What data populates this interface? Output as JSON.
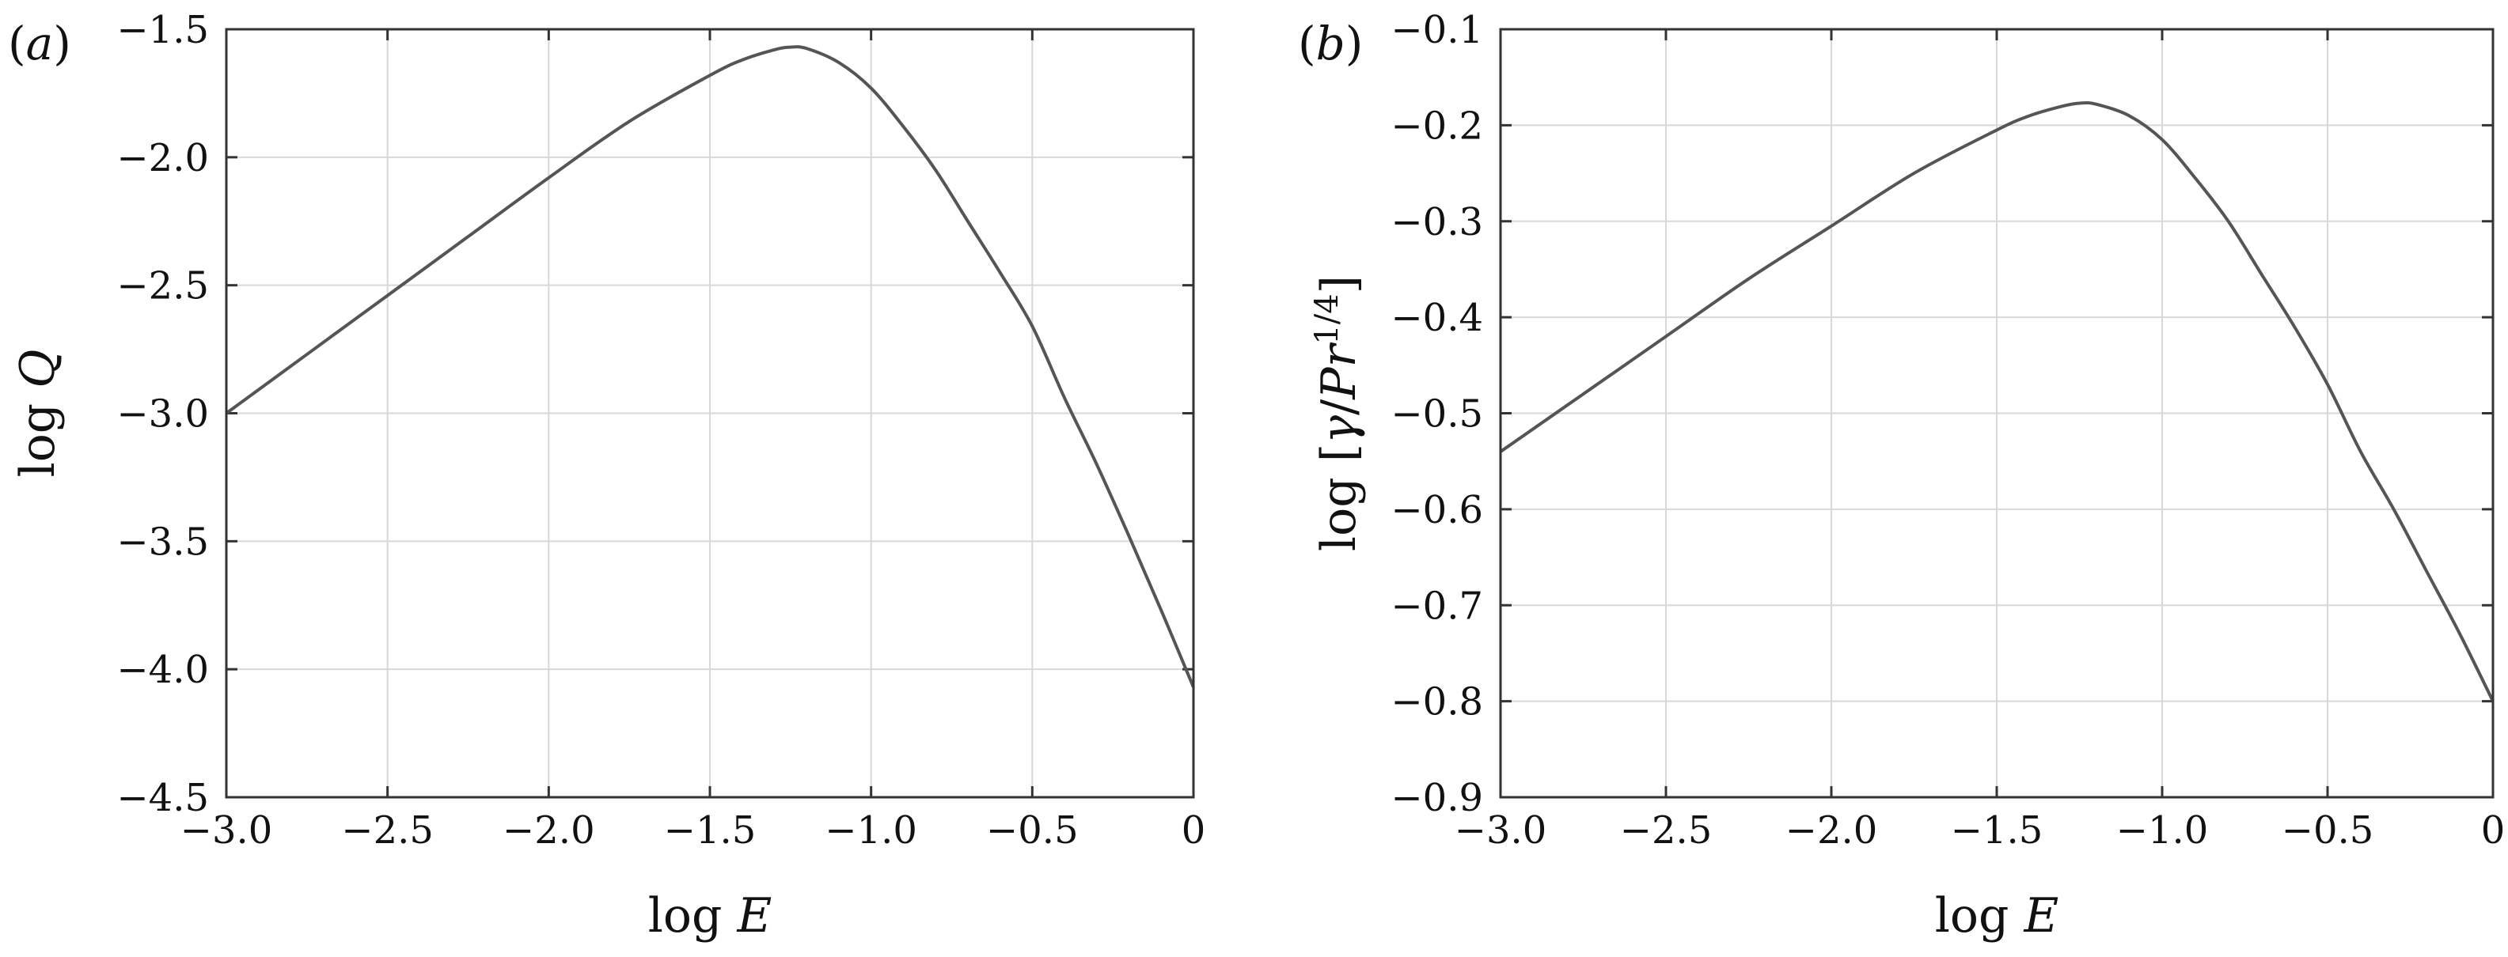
{
  "chart_data": [
    {
      "type": "line",
      "panel_label": "(a)",
      "xlabel": "log E",
      "ylabel": "log Q",
      "xlim": [
        -3.0,
        0
      ],
      "ylim": [
        -4.5,
        -1.5
      ],
      "xticks": [
        -3.0,
        -2.5,
        -2.0,
        -1.5,
        -1.0,
        -0.5,
        0
      ],
      "xtick_labels": [
        "−3.0",
        "−2.5",
        "−2.0",
        "−1.5",
        "−1.0",
        "−0.5",
        "0"
      ],
      "yticks": [
        -4.5,
        -4.0,
        -3.5,
        -3.0,
        -2.5,
        -2.0,
        -1.5
      ],
      "ytick_labels": [
        "−4.5",
        "−4.0",
        "−3.5",
        "−3.0",
        "−2.5",
        "−2.0",
        "−1.5"
      ],
      "grid": true,
      "series": [
        {
          "x": [
            -3.0,
            -2.75,
            -2.5,
            -2.25,
            -2.0,
            -1.75,
            -1.5,
            -1.4,
            -1.3,
            -1.25,
            -1.2,
            -1.1,
            -1.0,
            -0.9,
            -0.8,
            -0.7,
            -0.6,
            -0.5,
            -0.4,
            -0.3,
            -0.2,
            -0.1,
            0.0
          ],
          "y": [
            -3.0,
            -2.77,
            -2.54,
            -2.31,
            -2.08,
            -1.86,
            -1.68,
            -1.62,
            -1.58,
            -1.57,
            -1.575,
            -1.63,
            -1.73,
            -1.88,
            -2.05,
            -2.25,
            -2.45,
            -2.66,
            -2.94,
            -3.2,
            -3.48,
            -3.77,
            -4.07
          ]
        }
      ]
    },
    {
      "type": "line",
      "panel_label": "(b)",
      "xlabel": "log E",
      "ylabel": "log [γ/Pr^(1/4)]",
      "ylabel_parts": {
        "prefix": "log [",
        "gamma": "γ",
        "slash": "/",
        "pr": "Pr",
        "exp": "1/4",
        "suffix": "]"
      },
      "xlim": [
        -3.0,
        0
      ],
      "ylim": [
        -0.9,
        -0.1
      ],
      "xticks": [
        -3.0,
        -2.5,
        -2.0,
        -1.5,
        -1.0,
        -0.5,
        0
      ],
      "xtick_labels": [
        "−3.0",
        "−2.5",
        "−2.0",
        "−1.5",
        "−1.0",
        "−0.5",
        "0"
      ],
      "yticks": [
        -0.9,
        -0.8,
        -0.7,
        -0.6,
        -0.5,
        -0.4,
        -0.3,
        -0.2,
        -0.1
      ],
      "ytick_labels": [
        "−0.9",
        "−0.8",
        "−0.7",
        "−0.6",
        "−0.5",
        "−0.4",
        "−0.3",
        "−0.2",
        "−0.1"
      ],
      "grid": true,
      "series": [
        {
          "x": [
            -3.0,
            -2.75,
            -2.5,
            -2.25,
            -2.0,
            -1.75,
            -1.5,
            -1.4,
            -1.3,
            -1.25,
            -1.2,
            -1.1,
            -1.0,
            -0.9,
            -0.8,
            -0.7,
            -0.6,
            -0.5,
            -0.4,
            -0.3,
            -0.2,
            -0.1,
            0.0
          ],
          "y": [
            -0.54,
            -0.48,
            -0.42,
            -0.36,
            -0.305,
            -0.25,
            -0.205,
            -0.19,
            -0.18,
            -0.177,
            -0.178,
            -0.19,
            -0.215,
            -0.255,
            -0.3,
            -0.355,
            -0.41,
            -0.47,
            -0.54,
            -0.6,
            -0.665,
            -0.73,
            -0.8
          ]
        }
      ]
    }
  ]
}
